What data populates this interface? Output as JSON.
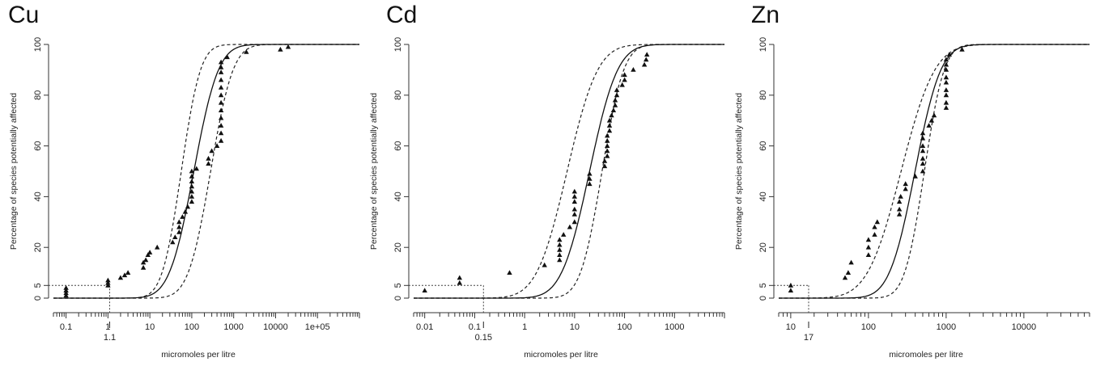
{
  "chart_data": [
    {
      "type": "scatter",
      "title": "Cu",
      "xlabel": "micromoles per litre",
      "ylabel": "Percentage of species potentially affected",
      "x_scale": "log",
      "xlim": [
        0.05,
        1000000
      ],
      "ylim": [
        0,
        100
      ],
      "x_ticks": [
        0.1,
        1,
        10,
        100,
        1000,
        10000,
        100000
      ],
      "x_tick_labels": [
        "0.1",
        "1",
        "10",
        "100",
        "1000",
        "10000",
        "1e+05"
      ],
      "y_ticks": [
        0,
        5,
        20,
        40,
        60,
        80,
        100
      ],
      "y_tick_labels": [
        "0",
        "5",
        "20",
        "40",
        "60",
        "80",
        "100"
      ],
      "hc5_value": 1.1,
      "hc5_label": "1.1",
      "hc5_percent": 5,
      "fit": {
        "median_log10": 2.05,
        "scale": 0.46
      },
      "ci_lower": {
        "median_log10": 2.45,
        "scale": 0.42
      },
      "ci_upper": {
        "median_log10": 1.75,
        "scale": 0.36
      },
      "points": [
        {
          "x": 0.1,
          "y": 1
        },
        {
          "x": 0.1,
          "y": 2
        },
        {
          "x": 0.1,
          "y": 3
        },
        {
          "x": 0.1,
          "y": 4
        },
        {
          "x": 1.0,
          "y": 5
        },
        {
          "x": 1.0,
          "y": 6
        },
        {
          "x": 1.0,
          "y": 7
        },
        {
          "x": 2.0,
          "y": 8
        },
        {
          "x": 2.5,
          "y": 9
        },
        {
          "x": 3.0,
          "y": 10
        },
        {
          "x": 7,
          "y": 12
        },
        {
          "x": 7,
          "y": 14
        },
        {
          "x": 8,
          "y": 15
        },
        {
          "x": 9,
          "y": 17
        },
        {
          "x": 10,
          "y": 18
        },
        {
          "x": 15,
          "y": 20
        },
        {
          "x": 35,
          "y": 22
        },
        {
          "x": 40,
          "y": 24
        },
        {
          "x": 50,
          "y": 26
        },
        {
          "x": 50,
          "y": 28
        },
        {
          "x": 50,
          "y": 30
        },
        {
          "x": 60,
          "y": 32
        },
        {
          "x": 70,
          "y": 34
        },
        {
          "x": 80,
          "y": 36
        },
        {
          "x": 100,
          "y": 38
        },
        {
          "x": 100,
          "y": 40
        },
        {
          "x": 100,
          "y": 42
        },
        {
          "x": 100,
          "y": 44
        },
        {
          "x": 100,
          "y": 46
        },
        {
          "x": 100,
          "y": 48
        },
        {
          "x": 100,
          "y": 50
        },
        {
          "x": 130,
          "y": 51
        },
        {
          "x": 250,
          "y": 53
        },
        {
          "x": 250,
          "y": 55
        },
        {
          "x": 300,
          "y": 58
        },
        {
          "x": 400,
          "y": 60
        },
        {
          "x": 500,
          "y": 62
        },
        {
          "x": 500,
          "y": 65
        },
        {
          "x": 500,
          "y": 68
        },
        {
          "x": 500,
          "y": 71
        },
        {
          "x": 500,
          "y": 74
        },
        {
          "x": 500,
          "y": 77
        },
        {
          "x": 500,
          "y": 80
        },
        {
          "x": 500,
          "y": 83
        },
        {
          "x": 500,
          "y": 86
        },
        {
          "x": 500,
          "y": 89
        },
        {
          "x": 500,
          "y": 91
        },
        {
          "x": 500,
          "y": 93
        },
        {
          "x": 700,
          "y": 95
        },
        {
          "x": 2000,
          "y": 97
        },
        {
          "x": 13000,
          "y": 98
        },
        {
          "x": 20000,
          "y": 99
        }
      ]
    },
    {
      "type": "scatter",
      "title": "Cd",
      "xlabel": "micromoles per litre",
      "ylabel": "Percentage of species potentially affected",
      "x_scale": "log",
      "xlim": [
        0.006,
        10000
      ],
      "ylim": [
        0,
        100
      ],
      "x_ticks": [
        0.01,
        0.1,
        1,
        10,
        100,
        1000
      ],
      "x_tick_labels": [
        "0.01",
        "0.1",
        "1",
        "10",
        "100",
        "1000"
      ],
      "y_ticks": [
        0,
        5,
        20,
        40,
        60,
        80,
        100
      ],
      "y_tick_labels": [
        "0",
        "5",
        "20",
        "40",
        "60",
        "80",
        "100"
      ],
      "hc5_value": 0.15,
      "hc5_label": "0.15",
      "hc5_percent": 5,
      "fit": {
        "median_log10": 1.3,
        "scale": 0.44
      },
      "ci_lower": {
        "median_log10": 1.55,
        "scale": 0.34
      },
      "ci_upper": {
        "median_log10": 0.85,
        "scale": 0.48
      },
      "points": [
        {
          "x": 0.01,
          "y": 3
        },
        {
          "x": 0.05,
          "y": 6
        },
        {
          "x": 0.05,
          "y": 8
        },
        {
          "x": 0.5,
          "y": 10
        },
        {
          "x": 2.5,
          "y": 13
        },
        {
          "x": 5,
          "y": 15
        },
        {
          "x": 5,
          "y": 17
        },
        {
          "x": 5,
          "y": 19
        },
        {
          "x": 5,
          "y": 21
        },
        {
          "x": 5,
          "y": 23
        },
        {
          "x": 6,
          "y": 25
        },
        {
          "x": 8,
          "y": 28
        },
        {
          "x": 10,
          "y": 30
        },
        {
          "x": 10,
          "y": 33
        },
        {
          "x": 10,
          "y": 35
        },
        {
          "x": 10,
          "y": 38
        },
        {
          "x": 10,
          "y": 40
        },
        {
          "x": 10,
          "y": 42
        },
        {
          "x": 20,
          "y": 45
        },
        {
          "x": 20,
          "y": 47
        },
        {
          "x": 20,
          "y": 49
        },
        {
          "x": 40,
          "y": 52
        },
        {
          "x": 40,
          "y": 54
        },
        {
          "x": 45,
          "y": 56
        },
        {
          "x": 45,
          "y": 58
        },
        {
          "x": 45,
          "y": 60
        },
        {
          "x": 45,
          "y": 62
        },
        {
          "x": 45,
          "y": 64
        },
        {
          "x": 50,
          "y": 66
        },
        {
          "x": 50,
          "y": 68
        },
        {
          "x": 50,
          "y": 70
        },
        {
          "x": 55,
          "y": 72
        },
        {
          "x": 60,
          "y": 74
        },
        {
          "x": 65,
          "y": 76
        },
        {
          "x": 65,
          "y": 78
        },
        {
          "x": 70,
          "y": 80
        },
        {
          "x": 70,
          "y": 82
        },
        {
          "x": 90,
          "y": 84
        },
        {
          "x": 100,
          "y": 86
        },
        {
          "x": 100,
          "y": 88
        },
        {
          "x": 150,
          "y": 90
        },
        {
          "x": 250,
          "y": 92
        },
        {
          "x": 270,
          "y": 94
        },
        {
          "x": 280,
          "y": 96
        }
      ]
    },
    {
      "type": "scatter",
      "title": "Zn",
      "xlabel": "micromoles per litre",
      "ylabel": "Percentage of species potentially affected",
      "x_scale": "log",
      "xlim": [
        7,
        70000
      ],
      "ylim": [
        0,
        100
      ],
      "x_ticks": [
        10,
        100,
        1000,
        10000
      ],
      "x_tick_labels": [
        "10",
        "100",
        "1000",
        "10000"
      ],
      "y_ticks": [
        0,
        5,
        20,
        40,
        60,
        80,
        100
      ],
      "y_tick_labels": [
        "0",
        "5",
        "20",
        "40",
        "60",
        "80",
        "100"
      ],
      "hc5_value": 17,
      "hc5_label": "17",
      "hc5_percent": 5,
      "fit": {
        "median_log10": 2.6,
        "scale": 0.26
      },
      "ci_lower": {
        "median_log10": 2.72,
        "scale": 0.2
      },
      "ci_upper": {
        "median_log10": 2.42,
        "scale": 0.34
      },
      "points": [
        {
          "x": 10,
          "y": 3
        },
        {
          "x": 10,
          "y": 5
        },
        {
          "x": 50,
          "y": 8
        },
        {
          "x": 55,
          "y": 10
        },
        {
          "x": 60,
          "y": 14
        },
        {
          "x": 100,
          "y": 17
        },
        {
          "x": 100,
          "y": 20
        },
        {
          "x": 100,
          "y": 23
        },
        {
          "x": 120,
          "y": 25
        },
        {
          "x": 120,
          "y": 28
        },
        {
          "x": 130,
          "y": 30
        },
        {
          "x": 250,
          "y": 33
        },
        {
          "x": 250,
          "y": 35
        },
        {
          "x": 250,
          "y": 38
        },
        {
          "x": 260,
          "y": 40
        },
        {
          "x": 300,
          "y": 43
        },
        {
          "x": 300,
          "y": 45
        },
        {
          "x": 400,
          "y": 48
        },
        {
          "x": 500,
          "y": 50
        },
        {
          "x": 500,
          "y": 53
        },
        {
          "x": 500,
          "y": 55
        },
        {
          "x": 500,
          "y": 58
        },
        {
          "x": 500,
          "y": 60
        },
        {
          "x": 500,
          "y": 63
        },
        {
          "x": 500,
          "y": 65
        },
        {
          "x": 600,
          "y": 68
        },
        {
          "x": 650,
          "y": 70
        },
        {
          "x": 700,
          "y": 72
        },
        {
          "x": 1000,
          "y": 75
        },
        {
          "x": 1000,
          "y": 77
        },
        {
          "x": 1000,
          "y": 80
        },
        {
          "x": 1000,
          "y": 82
        },
        {
          "x": 1000,
          "y": 85
        },
        {
          "x": 1000,
          "y": 87
        },
        {
          "x": 1000,
          "y": 90
        },
        {
          "x": 1000,
          "y": 92
        },
        {
          "x": 1000,
          "y": 94
        },
        {
          "x": 1100,
          "y": 96
        },
        {
          "x": 1600,
          "y": 98
        }
      ]
    }
  ]
}
